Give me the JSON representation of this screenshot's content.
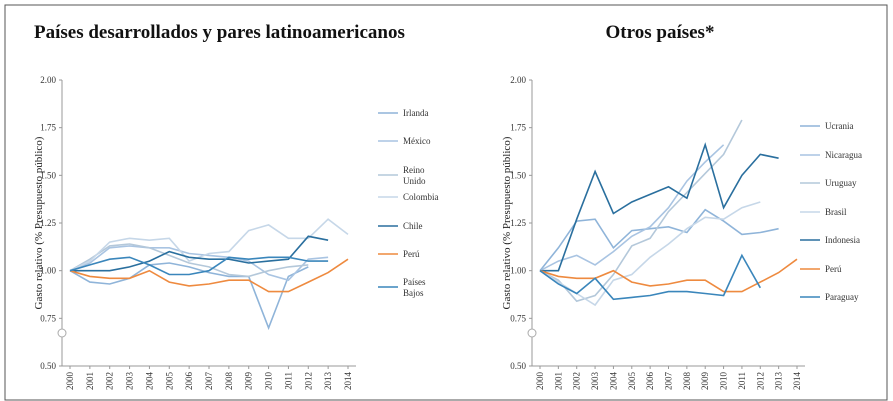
{
  "chart_data": [
    {
      "type": "line",
      "title": "Países desarrollados y pares latinoamericanos",
      "ylabel": "Gasto relativo (% Presupuesto público)",
      "categories": [
        "2000",
        "2001",
        "2002",
        "2003",
        "2004",
        "2005",
        "2006",
        "2007",
        "2008",
        "2009",
        "2010",
        "2011",
        "2012",
        "2013",
        "2014"
      ],
      "ylim": [
        0.5,
        2.0
      ],
      "yticks": [
        {
          "value": 0.5,
          "label": "0.50"
        },
        {
          "value": 0.75,
          "label": "0.75"
        },
        {
          "value": 1.0,
          "label": "1.00"
        },
        {
          "value": 1.25,
          "label": "1.25"
        },
        {
          "value": 1.5,
          "label": "1.50"
        },
        {
          "value": 1.75,
          "label": "1.75"
        },
        {
          "value": 2.0,
          "label": "2.00"
        }
      ],
      "series": [
        {
          "name": "Irlanda",
          "color": "#8fb4d9",
          "values": [
            1.0,
            0.94,
            0.93,
            0.96,
            1.03,
            1.04,
            1.02,
            0.99,
            0.97,
            0.97,
            0.7,
            0.97,
            1.02,
            null,
            null
          ]
        },
        {
          "name": "México",
          "color": "#a9c4e2",
          "values": [
            1.0,
            1.04,
            1.12,
            1.13,
            1.12,
            1.12,
            1.09,
            1.08,
            1.07,
            1.05,
            0.98,
            0.95,
            1.06,
            1.07,
            null
          ]
        },
        {
          "name": "Reino Unido",
          "color": "#b4c8da",
          "values": [
            1.0,
            1.06,
            1.13,
            1.14,
            1.12,
            1.08,
            1.04,
            1.02,
            0.98,
            0.97,
            1.0,
            1.02,
            1.03,
            null,
            null
          ]
        },
        {
          "name": "Colombia",
          "color": "#c6d7e8",
          "values": [
            1.0,
            1.05,
            1.15,
            1.17,
            1.16,
            1.17,
            1.05,
            1.09,
            1.1,
            1.21,
            1.24,
            1.17,
            1.17,
            1.27,
            1.19
          ]
        },
        {
          "name": "Chile",
          "color": "#2a6f9e",
          "values": [
            1.0,
            1.0,
            1.0,
            1.02,
            1.05,
            1.1,
            1.07,
            1.06,
            1.06,
            1.04,
            1.05,
            1.06,
            1.18,
            1.16,
            null
          ]
        },
        {
          "name": "Perú",
          "color": "#ee8a3f",
          "values": [
            1.0,
            0.97,
            0.96,
            0.96,
            1.0,
            0.94,
            0.92,
            0.93,
            0.95,
            0.95,
            0.89,
            0.89,
            0.94,
            0.99,
            1.06
          ]
        },
        {
          "name": "Países Bajos",
          "color": "#3a86bb",
          "values": [
            1.0,
            1.03,
            1.06,
            1.07,
            1.03,
            0.98,
            0.98,
            1.0,
            1.07,
            1.06,
            1.07,
            1.07,
            1.05,
            1.05,
            null
          ]
        }
      ]
    },
    {
      "type": "line",
      "title": "Otros países*",
      "ylabel": "Gasto relativo (% Presupuesto público)",
      "categories": [
        "2000",
        "2001",
        "2002",
        "2003",
        "2004",
        "2005",
        "2006",
        "2007",
        "2008",
        "2009",
        "2010",
        "2011",
        "2012",
        "2013",
        "2014"
      ],
      "ylim": [
        0.5,
        2.0
      ],
      "yticks": [
        {
          "value": 0.5,
          "label": "0.50"
        },
        {
          "value": 0.75,
          "label": "0.75"
        },
        {
          "value": 1.0,
          "label": "1.00"
        },
        {
          "value": 1.25,
          "label": "1.25"
        },
        {
          "value": 1.5,
          "label": "1.50"
        },
        {
          "value": 1.75,
          "label": "1.75"
        },
        {
          "value": 2.0,
          "label": "2.00"
        }
      ],
      "series": [
        {
          "name": "Ucrania",
          "color": "#8fb4d9",
          "values": [
            1.0,
            1.12,
            1.26,
            1.27,
            1.12,
            1.21,
            1.22,
            1.23,
            1.2,
            1.32,
            1.26,
            1.19,
            1.2,
            1.22,
            null
          ]
        },
        {
          "name": "Nicaragua",
          "color": "#a9c4e2",
          "values": [
            1.0,
            1.05,
            1.08,
            1.03,
            1.1,
            1.18,
            1.23,
            1.33,
            1.47,
            1.57,
            1.66,
            null,
            null,
            null,
            null
          ]
        },
        {
          "name": "Uruguay",
          "color": "#b4c8da",
          "values": [
            1.0,
            0.95,
            0.84,
            0.87,
            0.98,
            1.13,
            1.17,
            1.31,
            1.41,
            1.51,
            1.61,
            1.79,
            null,
            null,
            null
          ]
        },
        {
          "name": "Brasil",
          "color": "#c6d7e8",
          "values": [
            1.0,
            0.94,
            0.88,
            0.82,
            0.95,
            0.98,
            1.07,
            1.14,
            1.22,
            1.28,
            1.27,
            1.33,
            1.36,
            null,
            null
          ]
        },
        {
          "name": "Indonesia",
          "color": "#2a6f9e",
          "values": [
            1.0,
            1.0,
            1.27,
            1.52,
            1.3,
            1.36,
            1.4,
            1.44,
            1.38,
            1.66,
            1.33,
            1.5,
            1.61,
            1.59,
            null
          ]
        },
        {
          "name": "Perú",
          "color": "#ee8a3f",
          "values": [
            1.0,
            0.97,
            0.96,
            0.96,
            1.0,
            0.94,
            0.92,
            0.93,
            0.95,
            0.95,
            0.89,
            0.89,
            0.94,
            0.99,
            1.06
          ]
        },
        {
          "name": "Paraguay",
          "color": "#3a86bb",
          "values": [
            1.0,
            0.93,
            0.88,
            0.96,
            0.85,
            0.86,
            0.87,
            0.89,
            0.89,
            0.88,
            0.87,
            1.08,
            0.91,
            null,
            null
          ]
        }
      ]
    }
  ]
}
